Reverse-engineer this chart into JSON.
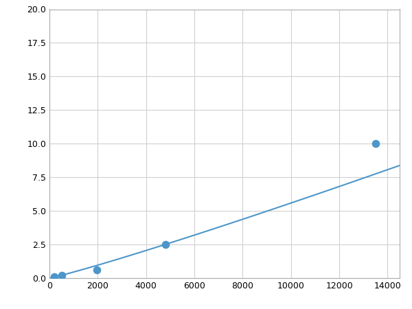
{
  "x_points": [
    200,
    500,
    1950,
    4800,
    13500
  ],
  "y_points": [
    0.1,
    0.2,
    0.6,
    2.5,
    10.0
  ],
  "line_color": "#4d96c9",
  "marker_color": "#4d96c9",
  "marker_size": 6,
  "line_width": 1.5,
  "xlim": [
    0,
    14500
  ],
  "ylim": [
    0,
    20.0
  ],
  "xticks": [
    0,
    2000,
    4000,
    6000,
    8000,
    10000,
    12000,
    14000
  ],
  "yticks": [
    0.0,
    2.5,
    5.0,
    7.5,
    10.0,
    12.5,
    15.0,
    17.5,
    20.0
  ],
  "xtick_labels": [
    "0",
    "2000",
    "4000",
    "6000",
    "8000",
    "10000",
    "12000",
    "14000"
  ],
  "ytick_labels": [
    "0.0",
    "2.5",
    "5.0",
    "7.5",
    "10.0",
    "12.5",
    "15.0",
    "17.5",
    "20.0"
  ],
  "grid_color": "#d0d0d0",
  "background_color": "#ffffff",
  "tick_fontsize": 9
}
